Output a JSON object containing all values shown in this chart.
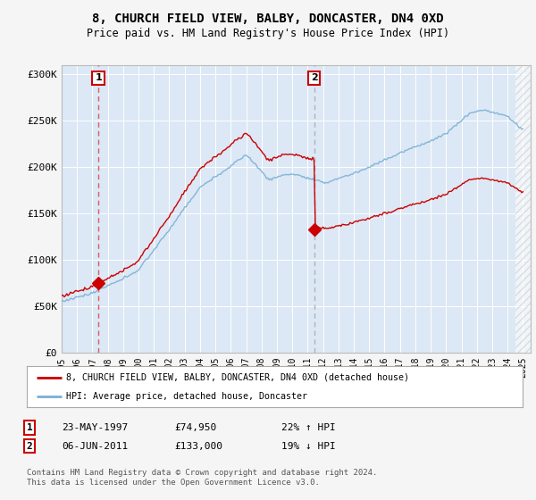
{
  "title": "8, CHURCH FIELD VIEW, BALBY, DONCASTER, DN4 0XD",
  "subtitle": "Price paid vs. HM Land Registry's House Price Index (HPI)",
  "ylim": [
    0,
    310000
  ],
  "xlim_start": 1995.0,
  "xlim_end": 2025.5,
  "yticks": [
    0,
    50000,
    100000,
    150000,
    200000,
    250000,
    300000
  ],
  "ytick_labels": [
    "£0",
    "£50K",
    "£100K",
    "£150K",
    "£200K",
    "£250K",
    "£300K"
  ],
  "xticks": [
    1995,
    1996,
    1997,
    1998,
    1999,
    2000,
    2001,
    2002,
    2003,
    2004,
    2005,
    2006,
    2007,
    2008,
    2009,
    2010,
    2011,
    2012,
    2013,
    2014,
    2015,
    2016,
    2017,
    2018,
    2019,
    2020,
    2021,
    2022,
    2023,
    2024,
    2025
  ],
  "sale1_date": 1997.39,
  "sale1_price": 74950,
  "sale2_date": 2011.43,
  "sale2_price": 133000,
  "red_line_color": "#cc0000",
  "blue_line_color": "#7ab0d4",
  "dashed1_color": "#dd4444",
  "dashed2_color": "#aaaaaa",
  "plot_bg_color": "#dce8f5",
  "outer_bg_color": "#f5f5f5",
  "legend_label_red": "8, CHURCH FIELD VIEW, BALBY, DONCASTER, DN4 0XD (detached house)",
  "legend_label_blue": "HPI: Average price, detached house, Doncaster",
  "table_row1": [
    "1",
    "23-MAY-1997",
    "£74,950",
    "22% ↑ HPI"
  ],
  "table_row2": [
    "2",
    "06-JUN-2011",
    "£133,000",
    "19% ↓ HPI"
  ],
  "footer": "Contains HM Land Registry data © Crown copyright and database right 2024.\nThis data is licensed under the Open Government Licence v3.0."
}
